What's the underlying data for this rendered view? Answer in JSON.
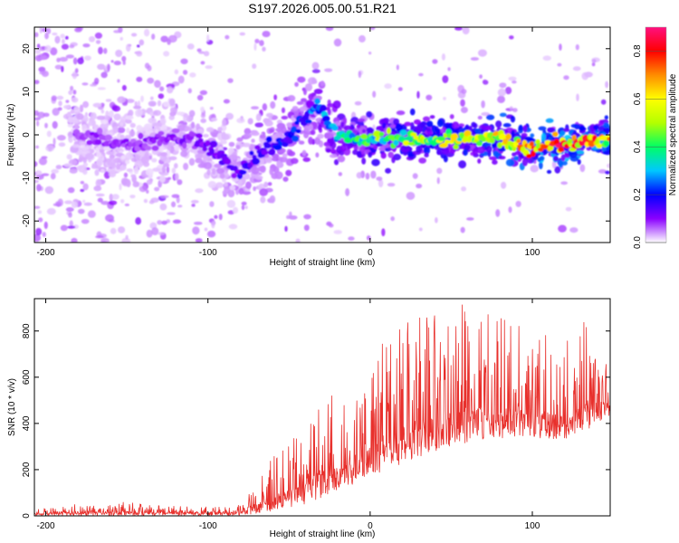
{
  "title": "S197.2026.005.00.51.R21",
  "chart_data": [
    {
      "type": "heatmap",
      "name": "spectrogram",
      "xlabel": "Height of straight line (km)",
      "ylabel": "Frequency (Hz)",
      "xlim": [
        -207,
        148
      ],
      "ylim": [
        -25,
        25
      ],
      "xticks": [
        -200,
        -100,
        0,
        100
      ],
      "xtick_labels": [
        "-200",
        "-100",
        "0",
        "100"
      ],
      "yticks": [
        -20,
        -10,
        0,
        10,
        20
      ],
      "ytick_labels": [
        "-20",
        "-10",
        "0",
        "10",
        "20"
      ],
      "colorbar": {
        "label": "Normalized spectral amplitude",
        "range": [
          0,
          0.9
        ],
        "ticks": [
          0.0,
          0.2,
          0.4,
          0.6,
          0.8
        ],
        "tick_labels": [
          "0.0",
          "0.2",
          "0.4",
          "0.6",
          "0.8"
        ],
        "colors": [
          "#ffffff",
          "#8a00ff",
          "#0000ff",
          "#00c8ff",
          "#00ff64",
          "#b4ff00",
          "#ffff00",
          "#ff8c00",
          "#ff0000",
          "#ff1080"
        ]
      },
      "ridge": {
        "x": [
          -180,
          -150,
          -130,
          -110,
          -95,
          -85,
          -80,
          -70,
          -60,
          -50,
          -40,
          -33,
          -28,
          -25,
          -20,
          -10,
          0,
          20,
          40,
          60,
          80,
          100,
          120,
          140,
          148
        ],
        "frequency_hz": [
          0,
          -3,
          -1,
          -1,
          -4,
          -7,
          -9,
          -4,
          -3,
          -1,
          4,
          7,
          5,
          2,
          0,
          -1,
          -1,
          -1,
          -1,
          -1,
          -1,
          -3,
          -2,
          -1,
          -1
        ],
        "amplitude": [
          0.1,
          0.1,
          0.1,
          0.12,
          0.14,
          0.14,
          0.16,
          0.18,
          0.2,
          0.24,
          0.26,
          0.3,
          0.3,
          0.32,
          0.36,
          0.42,
          0.48,
          0.55,
          0.6,
          0.62,
          0.68,
          0.82,
          0.86,
          0.8,
          0.7
        ]
      }
    },
    {
      "type": "line",
      "name": "snr",
      "xlabel": "Height of straight line (km)",
      "ylabel": "SNR (10 * v/v)",
      "xlim": [
        -207,
        148
      ],
      "ylim": [
        0,
        940
      ],
      "xticks": [
        -200,
        -100,
        0,
        100
      ],
      "xtick_labels": [
        "-200",
        "-100",
        "0",
        "100"
      ],
      "yticks": [
        0,
        200,
        400,
        600,
        800
      ],
      "ytick_labels": [
        "0",
        "200",
        "400",
        "600",
        "800"
      ],
      "color": "#e8302c",
      "series": [
        {
          "name": "SNR envelope",
          "x": [
            -207,
            -180,
            -150,
            -120,
            -100,
            -80,
            -70,
            -60,
            -50,
            -40,
            -30,
            -20,
            -10,
            0,
            10,
            20,
            30,
            40,
            50,
            60,
            70,
            80,
            90,
            100,
            110,
            120,
            130,
            140,
            148
          ],
          "baseline": [
            5,
            5,
            5,
            5,
            5,
            5,
            10,
            20,
            35,
            55,
            80,
            110,
            140,
            170,
            200,
            230,
            260,
            280,
            300,
            320,
            330,
            340,
            345,
            340,
            335,
            330,
            360,
            400,
            420
          ],
          "peak": [
            25,
            55,
            55,
            45,
            35,
            45,
            160,
            260,
            380,
            430,
            560,
            520,
            560,
            680,
            760,
            820,
            860,
            880,
            900,
            920,
            910,
            860,
            840,
            810,
            780,
            760,
            840,
            880,
            620
          ]
        }
      ]
    }
  ]
}
